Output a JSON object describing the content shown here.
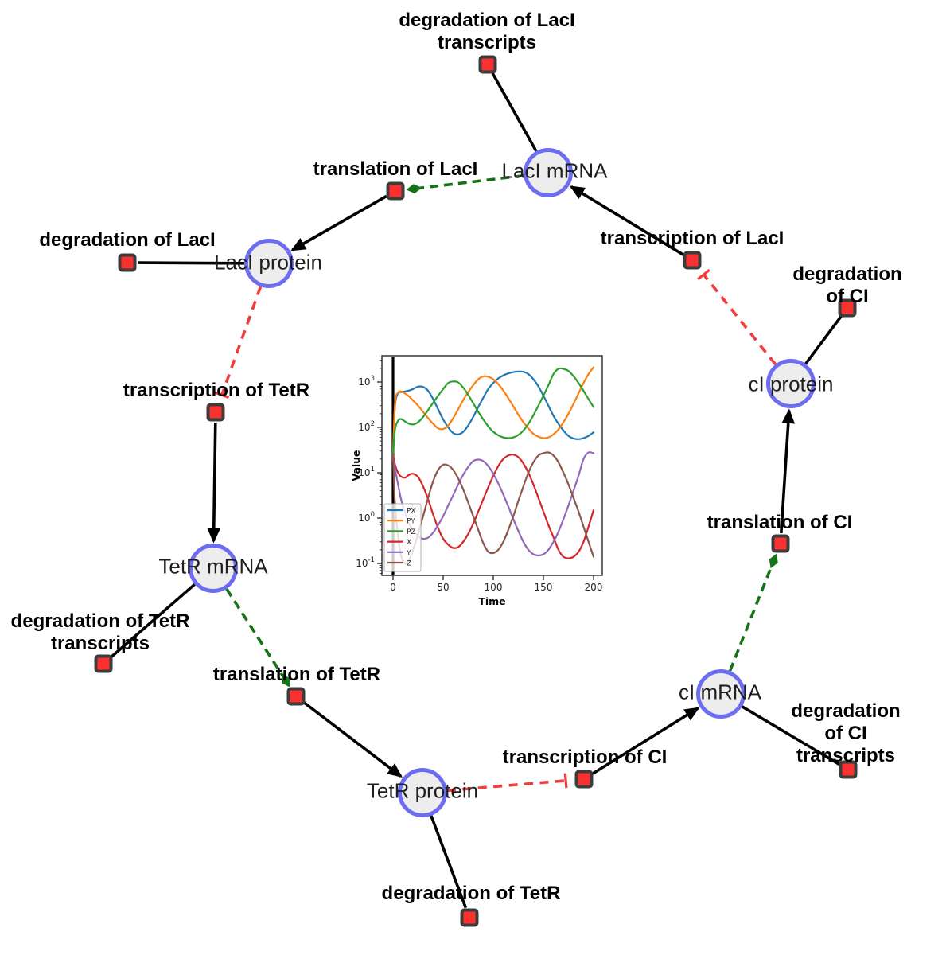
{
  "diagram": {
    "species": [
      {
        "id": "laci_mrna",
        "label": "LacI mRNA"
      },
      {
        "id": "laci_protein",
        "label": "LacI protein"
      },
      {
        "id": "tetr_mrna",
        "label": "TetR mRNA"
      },
      {
        "id": "tetr_protein",
        "label": "TetR protein"
      },
      {
        "id": "ci_mrna",
        "label": "cI mRNA"
      },
      {
        "id": "ci_protein",
        "label": "cI protein"
      }
    ],
    "reactions": [
      {
        "id": "deg_laci_tr",
        "label": "degradation of LacI\ntranscripts"
      },
      {
        "id": "tx_laci",
        "label": "transcription of LacI"
      },
      {
        "id": "tl_laci",
        "label": "translation of LacI"
      },
      {
        "id": "deg_laci",
        "label": "degradation of LacI"
      },
      {
        "id": "tx_tetr",
        "label": "transcription of TetR"
      },
      {
        "id": "deg_tetr_tr",
        "label": "degradation of TetR\ntranscripts"
      },
      {
        "id": "tl_tetr",
        "label": "translation of TetR"
      },
      {
        "id": "deg_tetr",
        "label": "degradation of TetR"
      },
      {
        "id": "tx_ci",
        "label": "transcription of CI"
      },
      {
        "id": "deg_ci_tr",
        "label": "degradation of CI\ntranscripts"
      },
      {
        "id": "tl_ci",
        "label": "translation of CI"
      },
      {
        "id": "deg_ci",
        "label": "degradation of CI"
      }
    ],
    "edges": [
      {
        "from": "laci_mrna",
        "to": "deg_laci_tr",
        "type": "consumption"
      },
      {
        "from": "tx_laci",
        "to": "laci_mrna",
        "type": "production"
      },
      {
        "from": "laci_mrna",
        "to": "tl_laci",
        "type": "modifier"
      },
      {
        "from": "tl_laci",
        "to": "laci_protein",
        "type": "production"
      },
      {
        "from": "laci_protein",
        "to": "deg_laci",
        "type": "consumption"
      },
      {
        "from": "laci_protein",
        "to": "tx_tetr",
        "type": "inhibition"
      },
      {
        "from": "tx_tetr",
        "to": "tetr_mrna",
        "type": "production"
      },
      {
        "from": "tetr_mrna",
        "to": "deg_tetr_tr",
        "type": "consumption"
      },
      {
        "from": "tetr_mrna",
        "to": "tl_tetr",
        "type": "modifier"
      },
      {
        "from": "tl_tetr",
        "to": "tetr_protein",
        "type": "production"
      },
      {
        "from": "tetr_protein",
        "to": "deg_tetr",
        "type": "consumption"
      },
      {
        "from": "tetr_protein",
        "to": "tx_ci",
        "type": "inhibition"
      },
      {
        "from": "tx_ci",
        "to": "ci_mrna",
        "type": "production"
      },
      {
        "from": "ci_mrna",
        "to": "deg_ci_tr",
        "type": "consumption"
      },
      {
        "from": "ci_mrna",
        "to": "tl_ci",
        "type": "modifier"
      },
      {
        "from": "tl_ci",
        "to": "ci_protein",
        "type": "production"
      },
      {
        "from": "ci_protein",
        "to": "deg_ci",
        "type": "consumption"
      },
      {
        "from": "ci_protein",
        "to": "tx_laci",
        "type": "inhibition"
      }
    ],
    "colors": {
      "species_fill": "#ededed",
      "species_border": "#6d6df2",
      "reaction_fill": "#fb3131",
      "reaction_border": "#3c3c3c",
      "reaction_edge": "#000000",
      "modifier_edge": "#177317",
      "inhibition_edge": "#f23b3b"
    }
  },
  "chart_data": {
    "type": "line",
    "title": "",
    "xlabel": "Time",
    "ylabel": "Value",
    "x_ticks": [
      0,
      50,
      100,
      150,
      200
    ],
    "y_scale": "log",
    "y_tick_exponents": [
      -1,
      0,
      1,
      2,
      3
    ],
    "xlim": [
      -11,
      209
    ],
    "ylim": [
      0.055,
      3800
    ],
    "legend_position": "lower left",
    "initial_spike_x": 0,
    "x": [
      0,
      2,
      5,
      8,
      12,
      16,
      20,
      25,
      30,
      35,
      40,
      45,
      50,
      55,
      60,
      65,
      70,
      75,
      80,
      85,
      90,
      95,
      100,
      105,
      110,
      115,
      120,
      125,
      130,
      135,
      140,
      145,
      150,
      155,
      160,
      165,
      170,
      175,
      180,
      185,
      190,
      195,
      200
    ],
    "series": [
      {
        "name": "PX",
        "color": "#1f77b4",
        "values": [
          25,
          300,
          560,
          600,
          620,
          650,
          700,
          790,
          780,
          640,
          420,
          250,
          150,
          100,
          75,
          70,
          80,
          110,
          170,
          280,
          450,
          700,
          950,
          1200,
          1400,
          1550,
          1650,
          1700,
          1680,
          1500,
          1150,
          800,
          500,
          300,
          180,
          120,
          85,
          65,
          57,
          55,
          58,
          65,
          78
        ]
      },
      {
        "name": "PY",
        "color": "#ff7f0e",
        "values": [
          25,
          350,
          580,
          620,
          560,
          480,
          390,
          300,
          220,
          160,
          120,
          95,
          92,
          110,
          160,
          250,
          400,
          600,
          850,
          1150,
          1330,
          1300,
          1150,
          900,
          650,
          440,
          290,
          190,
          130,
          95,
          72,
          62,
          58,
          60,
          70,
          90,
          130,
          200,
          330,
          560,
          950,
          1500,
          2100
        ]
      },
      {
        "name": "PZ",
        "color": "#2ca02c",
        "values": [
          25,
          90,
          140,
          152,
          135,
          120,
          116,
          130,
          170,
          240,
          350,
          500,
          700,
          950,
          1030,
          980,
          750,
          520,
          340,
          220,
          150,
          105,
          80,
          67,
          60,
          58,
          60,
          68,
          85,
          120,
          185,
          300,
          500,
          850,
          1500,
          1950,
          1950,
          1750,
          1350,
          950,
          640,
          420,
          280
        ]
      },
      {
        "name": "X",
        "color": "#d62728",
        "values": [
          25,
          15,
          10,
          8.2,
          7.8,
          9,
          9.5,
          8,
          5,
          2.6,
          1.2,
          0.6,
          0.35,
          0.26,
          0.22,
          0.23,
          0.3,
          0.45,
          0.75,
          1.4,
          2.6,
          4.8,
          8.5,
          14,
          20,
          24,
          25,
          22,
          16,
          10,
          5.5,
          2.8,
          1.4,
          0.7,
          0.38,
          0.2,
          0.14,
          0.13,
          0.14,
          0.18,
          0.3,
          0.65,
          1.5
        ]
      },
      {
        "name": "Y",
        "color": "#9467bd",
        "values": [
          20,
          12,
          5.5,
          2.6,
          1.3,
          0.75,
          0.52,
          0.4,
          0.35,
          0.37,
          0.48,
          0.7,
          1.1,
          1.9,
          3.2,
          5.5,
          9,
          13.5,
          18,
          19.5,
          18,
          14,
          9.5,
          5.8,
          3.3,
          1.8,
          0.95,
          0.52,
          0.3,
          0.2,
          0.16,
          0.15,
          0.16,
          0.2,
          0.3,
          0.5,
          0.95,
          1.9,
          4,
          8.5,
          20,
          28,
          27
        ]
      },
      {
        "name": "Z",
        "color": "#8c564b",
        "values": [
          25,
          2,
          0.4,
          0.15,
          0.1,
          0.12,
          0.2,
          0.45,
          1.1,
          2.8,
          6.5,
          11.5,
          15,
          14.5,
          11.5,
          7.5,
          4.3,
          2.2,
          1.1,
          0.55,
          0.28,
          0.18,
          0.17,
          0.2,
          0.3,
          0.55,
          1.1,
          2.4,
          5,
          10,
          17,
          24,
          27,
          28,
          24,
          17,
          10,
          5.5,
          2.8,
          1.4,
          0.65,
          0.3,
          0.14
        ]
      }
    ]
  }
}
